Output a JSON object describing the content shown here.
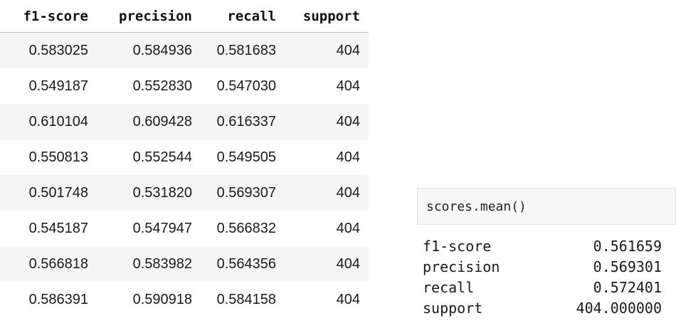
{
  "dataframe": {
    "columns": [
      "f1-score",
      "precision",
      "recall",
      "support"
    ],
    "rows": [
      [
        "0.583025",
        "0.584936",
        "0.581683",
        "404"
      ],
      [
        "0.549187",
        "0.552830",
        "0.547030",
        "404"
      ],
      [
        "0.610104",
        "0.609428",
        "0.616337",
        "404"
      ],
      [
        "0.550813",
        "0.552544",
        "0.549505",
        "404"
      ],
      [
        "0.501748",
        "0.531820",
        "0.569307",
        "404"
      ],
      [
        "0.545187",
        "0.547947",
        "0.566832",
        "404"
      ],
      [
        "0.566818",
        "0.583982",
        "0.564356",
        "404"
      ],
      [
        "0.586391",
        "0.590918",
        "0.584158",
        "404"
      ]
    ]
  },
  "code_cell": {
    "source": "scores.mean()"
  },
  "output": {
    "series": [
      {
        "label": "f1-score",
        "value": "0.561659"
      },
      {
        "label": "precision",
        "value": "0.569301"
      },
      {
        "label": "recall",
        "value": "0.572401"
      },
      {
        "label": "support",
        "value": "404.000000"
      }
    ]
  }
}
